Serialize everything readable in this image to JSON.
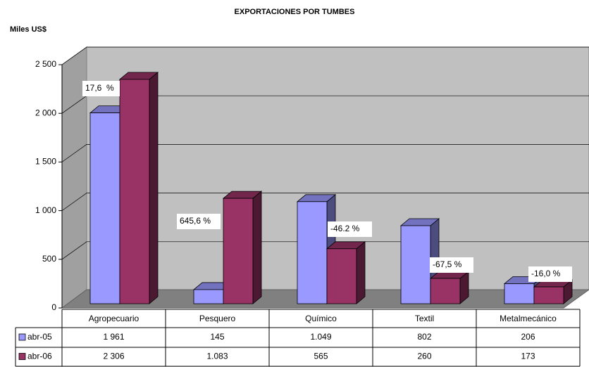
{
  "chart_data": {
    "type": "bar3d",
    "title": "EXPORTACIONES POR TUMBES",
    "y_label": "Miles US$",
    "categories": [
      "Agropecuario",
      "Pesquero",
      "Químico",
      "Textil",
      "Metalmecánico"
    ],
    "series": [
      {
        "name": "abr-05",
        "color": "#9999ff",
        "values": [
          1961,
          145,
          1049,
          802,
          206
        ],
        "value_labels": [
          "1 961",
          "145",
          "1.049",
          "802",
          "206"
        ]
      },
      {
        "name": "abr-06",
        "color": "#993366",
        "values": [
          2306,
          1083,
          565,
          260,
          173
        ],
        "value_labels": [
          "2 306",
          "1.083",
          "565",
          "260",
          "173"
        ]
      }
    ],
    "annotations": [
      "17,6  %",
      "645,6 %",
      "-46.2 %",
      "-67,5 %",
      "-16,0 %"
    ],
    "ylim": [
      0,
      2500
    ],
    "yticks": [
      0,
      500,
      {
        "value": 1000,
        "label": "1 000"
      },
      {
        "value": 1500,
        "label": "1 500"
      },
      {
        "value": 2000,
        "label": "2 000"
      },
      {
        "value": 2500,
        "label": "2 500"
      }
    ],
    "grid": true
  }
}
